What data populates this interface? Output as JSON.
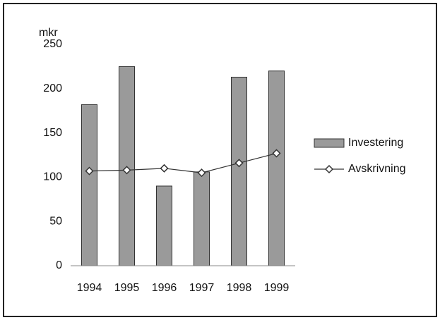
{
  "chart_data": {
    "type": "bar",
    "y_label": "mkr",
    "categories": [
      "1994",
      "1995",
      "1996",
      "1997",
      "1998",
      "1999"
    ],
    "series": [
      {
        "name": "Investering",
        "type": "bar",
        "color": "#9a9a9a",
        "values": [
          182,
          225,
          90,
          106,
          213,
          220
        ]
      },
      {
        "name": "Avskrivning",
        "type": "line",
        "color": "#333333",
        "values": [
          107,
          108,
          110,
          105,
          116,
          127
        ]
      }
    ],
    "ylim": [
      0,
      250
    ],
    "yticks": [
      0,
      50,
      100,
      150,
      200,
      250
    ],
    "grid": false,
    "legend": "right"
  }
}
